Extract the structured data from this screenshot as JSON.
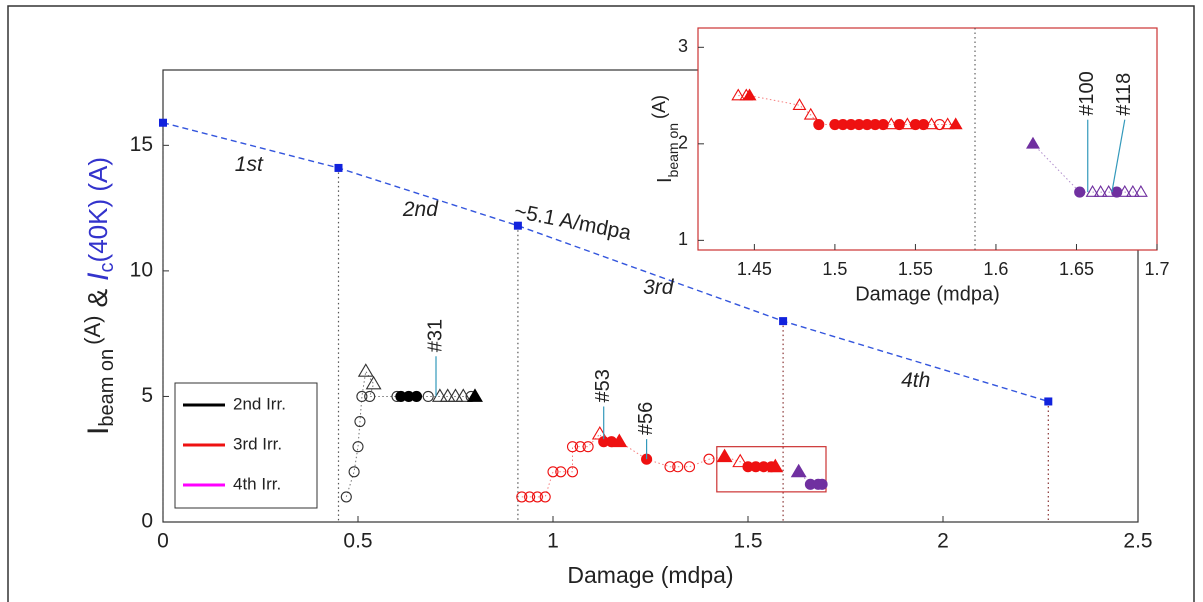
{
  "chart_data": [
    {
      "type": "scatter",
      "xlabel": "Damage (mdpa)",
      "ylabel": {
        "main": "I",
        "main_sub": "beam on",
        "main_unit": "(A)",
        "amp": "&",
        "ic": "I",
        "ic_sub": "c",
        "ic_rest": "(40K) (A)"
      },
      "ylabel_ic_color": "#3333cc",
      "xlim": [
        0,
        2.5
      ],
      "xticks": [
        0,
        0.5,
        1,
        1.5,
        2,
        2.5
      ],
      "ylim": [
        0,
        18
      ],
      "yticks": [
        0,
        5,
        10,
        15
      ],
      "reference": {
        "color": "#3355dd",
        "x": [
          0,
          0.45,
          0.91,
          1.59,
          2.27
        ],
        "values": [
          15.9,
          14.1,
          11.8,
          8.0,
          4.8
        ]
      },
      "annotations": [
        "1st",
        "2nd",
        "~5.1 A/mdpa",
        "3rd",
        "4th"
      ],
      "point_labels": [
        "#31",
        "#53",
        "#56"
      ],
      "zoom_box": [
        1.42,
        1.7,
        1.2,
        3.0
      ],
      "series": [
        {
          "name": "2nd Irr.",
          "color": "#000000",
          "legend_color": "#000000",
          "x": [
            0.47,
            0.49,
            0.5,
            0.505,
            0.51,
            0.52,
            0.54,
            0.53,
            0.6,
            0.61,
            0.63,
            0.65,
            0.68,
            0.71,
            0.73,
            0.75,
            0.77,
            0.79,
            0.8
          ],
          "values": [
            1,
            2,
            3,
            4,
            5,
            6,
            5.5,
            5,
            5,
            5,
            5,
            5,
            5,
            5,
            5,
            5,
            5,
            5,
            5
          ],
          "markers": [
            "o",
            "o",
            "o",
            "o",
            "o",
            "t",
            "t",
            "o",
            "o",
            "O",
            "O",
            "O",
            "o",
            "t",
            "t",
            "t",
            "t",
            "o",
            "T"
          ]
        },
        {
          "name": "3rd Irr.",
          "color": "#ee1111",
          "legend_color": "#ee1111",
          "x": [
            0.92,
            0.94,
            0.96,
            0.98,
            1.0,
            1.02,
            1.05,
            1.05,
            1.07,
            1.09,
            1.12,
            1.13,
            1.15,
            1.17,
            1.24,
            1.3,
            1.32,
            1.35,
            1.4,
            1.44,
            1.48,
            1.5,
            1.52,
            1.54,
            1.56,
            1.57
          ],
          "values": [
            1,
            1,
            1,
            1,
            2,
            2,
            2,
            3,
            3,
            3,
            3.5,
            3.2,
            3.2,
            3.2,
            2.5,
            2.2,
            2.2,
            2.2,
            2.5,
            2.6,
            2.4,
            2.2,
            2.2,
            2.2,
            2.2,
            2.2
          ],
          "markers": [
            "o",
            "o",
            "o",
            "o",
            "o",
            "o",
            "o",
            "o",
            "o",
            "o",
            "t",
            "O",
            "O",
            "T",
            "O",
            "o",
            "o",
            "o",
            "o",
            "T",
            "t",
            "O",
            "O",
            "O",
            "O",
            "T"
          ]
        },
        {
          "name": "4th Irr.",
          "color": "#7030a0",
          "legend_color": "#ff00ff",
          "x": [
            1.63,
            1.66,
            1.68,
            1.69
          ],
          "values": [
            2.0,
            1.5,
            1.5,
            1.5
          ],
          "markers": [
            "T",
            "O",
            "O",
            "O"
          ]
        }
      ]
    },
    {
      "type": "scatter",
      "xlabel": "Damage (mdpa)",
      "ylabel": {
        "main": "I",
        "main_sub": "beam on",
        "main_unit": "(A)"
      },
      "xlim": [
        1.415,
        1.7
      ],
      "xticks": [
        1.45,
        1.5,
        1.55,
        1.6,
        1.65,
        1.7
      ],
      "ylim": [
        0.9,
        3.2
      ],
      "yticks": [
        1,
        2,
        3
      ],
      "frame_color": "#cc3333",
      "divider": 1.587,
      "point_labels": [
        "#100",
        "#118"
      ],
      "series": [
        {
          "color": "#ee1111",
          "x": [
            1.44,
            1.445,
            1.447,
            1.478,
            1.485,
            1.49,
            1.5,
            1.505,
            1.51,
            1.515,
            1.52,
            1.525,
            1.53,
            1.535,
            1.54,
            1.545,
            1.55,
            1.555,
            1.56,
            1.565,
            1.57,
            1.575
          ],
          "values": [
            2.5,
            2.5,
            2.5,
            2.4,
            2.3,
            2.2,
            2.2,
            2.2,
            2.2,
            2.2,
            2.2,
            2.2,
            2.2,
            2.2,
            2.2,
            2.2,
            2.2,
            2.2,
            2.2,
            2.2,
            2.2,
            2.2
          ],
          "markers": [
            "t",
            "t",
            "T",
            "t",
            "t",
            "O",
            "O",
            "O",
            "O",
            "O",
            "O",
            "O",
            "O",
            "t",
            "O",
            "t",
            "O",
            "O",
            "t",
            "o",
            "t",
            "T"
          ]
        },
        {
          "color": "#7030a0",
          "x": [
            1.623,
            1.652,
            1.66,
            1.665,
            1.67,
            1.675,
            1.68,
            1.685,
            1.69
          ],
          "values": [
            2.0,
            1.5,
            1.5,
            1.5,
            1.5,
            1.5,
            1.5,
            1.5,
            1.5
          ],
          "markers": [
            "T",
            "O",
            "t",
            "t",
            "t",
            "O",
            "t",
            "t",
            "t"
          ]
        }
      ]
    }
  ]
}
